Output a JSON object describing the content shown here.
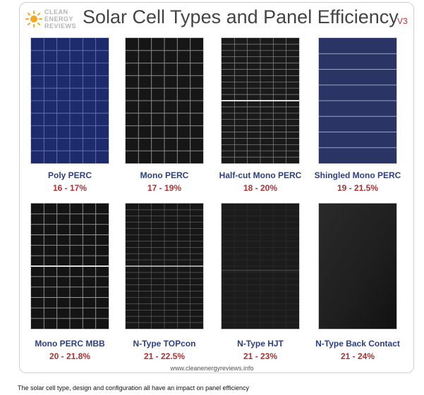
{
  "brand": {
    "line1": "CLEAN",
    "line2": "ENERGY",
    "line3": "REVIEWS"
  },
  "title": "Solar Cell Types and Panel Efficiency",
  "version": "V3",
  "panels": [
    {
      "label": "Poly PERC",
      "efficiency": "16 - 17%",
      "style": "poly"
    },
    {
      "label": "Mono PERC",
      "efficiency": "17 - 19%",
      "style": "mono"
    },
    {
      "label": "Half-cut Mono PERC",
      "efficiency": "18 - 20%",
      "style": "halfcut"
    },
    {
      "label": "Shingled Mono PERC",
      "efficiency": "19 - 21.5%",
      "style": "shingled"
    },
    {
      "label": "Mono PERC MBB",
      "efficiency": "20 - 21.8%",
      "style": "mbb"
    },
    {
      "label": "N-Type TOPcon",
      "efficiency": "21 - 22.5%",
      "style": "topcon"
    },
    {
      "label": "N-Type HJT",
      "efficiency": "21 - 23%",
      "style": "hjt"
    },
    {
      "label": "N-Type Back Contact",
      "efficiency": "21 - 24%",
      "style": "backcontact"
    }
  ],
  "colors": {
    "label": "#2c3e80",
    "efficiency": "#a33333",
    "poly": "#1d2a6b",
    "mono": "#1a1a1a",
    "shingled": "#2a3566"
  },
  "url": "www.cleanenergyreviews.info",
  "caption": "The solar cell type, design and configuration all have an impact on panel efficiency"
}
